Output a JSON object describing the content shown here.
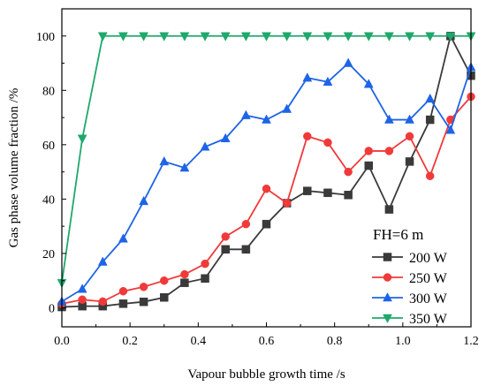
{
  "chart_data": {
    "type": "line",
    "xlabel": "Vapour bubble growth time /s",
    "ylabel": "Gas phase volume fraction /%",
    "xlim": [
      0.0,
      1.2
    ],
    "ylim": [
      -7,
      110
    ],
    "xticks": [
      0.0,
      0.2,
      0.4,
      0.6,
      0.8,
      1.0,
      1.2
    ],
    "xtick_labels": [
      "0.0",
      "0.2",
      "0.4",
      "0.6",
      "0.8",
      "1.0",
      "1.2"
    ],
    "yticks": [
      0,
      20,
      40,
      60,
      80,
      100
    ],
    "ytick_labels": [
      "0",
      "20",
      "40",
      "60",
      "80",
      "100"
    ],
    "grid": false,
    "legend_title": "FH=6 m",
    "legend_position": "bottom-right",
    "series": [
      {
        "name": "200 W",
        "color": "#3a3a3a",
        "marker": "square",
        "x": [
          0.0,
          0.06,
          0.12,
          0.18,
          0.24,
          0.3,
          0.36,
          0.42,
          0.48,
          0.54,
          0.6,
          0.66,
          0.72,
          0.78,
          0.84,
          0.9,
          0.96,
          1.02,
          1.08,
          1.14,
          1.2
        ],
        "y": [
          0.3,
          0.6,
          0.6,
          1.5,
          2.2,
          3.8,
          9.2,
          10.8,
          21.5,
          21.5,
          30.8,
          38.5,
          43.0,
          42.3,
          41.5,
          52.3,
          36.2,
          53.8,
          69.2,
          100.0,
          85.4
        ]
      },
      {
        "name": "250 W",
        "color": "#f03a3a",
        "marker": "circle",
        "x": [
          0.0,
          0.06,
          0.12,
          0.18,
          0.24,
          0.3,
          0.36,
          0.42,
          0.48,
          0.54,
          0.6,
          0.66,
          0.72,
          0.78,
          0.84,
          0.9,
          0.96,
          1.02,
          1.08,
          1.14,
          1.2
        ],
        "y": [
          1.5,
          3.0,
          2.3,
          6.1,
          7.7,
          10.0,
          12.3,
          16.2,
          26.2,
          30.8,
          43.8,
          38.5,
          63.1,
          60.8,
          50.0,
          57.7,
          57.7,
          63.1,
          48.5,
          69.2,
          77.7
        ]
      },
      {
        "name": "300 W",
        "color": "#1e64e6",
        "marker": "triangle-up",
        "x": [
          0.0,
          0.06,
          0.12,
          0.18,
          0.24,
          0.3,
          0.36,
          0.42,
          0.48,
          0.54,
          0.6,
          0.66,
          0.72,
          0.78,
          0.84,
          0.9,
          0.96,
          1.02,
          1.08,
          1.14,
          1.2
        ],
        "y": [
          2.3,
          6.9,
          16.9,
          25.4,
          39.2,
          53.8,
          51.5,
          59.2,
          62.3,
          70.8,
          69.2,
          73.1,
          84.6,
          83.1,
          90.0,
          82.3,
          69.2,
          69.2,
          76.9,
          65.4,
          88.5
        ]
      },
      {
        "name": "350 W",
        "color": "#1fa86b",
        "marker": "triangle-down",
        "x": [
          0.0,
          0.06,
          0.12,
          0.18,
          0.24,
          0.3,
          0.36,
          0.42,
          0.48,
          0.54,
          0.6,
          0.66,
          0.72,
          0.78,
          0.84,
          0.9,
          0.96,
          1.02,
          1.08,
          1.14,
          1.2
        ],
        "y": [
          9.2,
          62.3,
          100.0,
          100.0,
          100.0,
          100.0,
          100.0,
          100.0,
          100.0,
          100.0,
          100.0,
          100.0,
          100.0,
          100.0,
          100.0,
          100.0,
          100.0,
          100.0,
          100.0,
          100.0,
          100.0
        ]
      }
    ]
  }
}
